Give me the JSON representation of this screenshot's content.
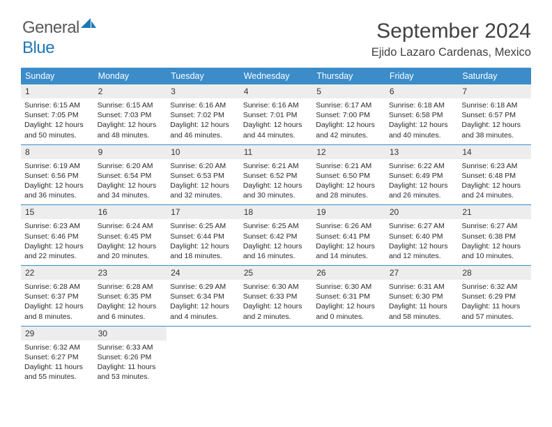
{
  "logo": {
    "word1": "General",
    "word2": "Blue"
  },
  "header": {
    "month_title": "September 2024",
    "location": "Ejido Lazaro Cardenas, Mexico"
  },
  "colors": {
    "header_bg": "#3b8cc9",
    "header_text": "#ffffff",
    "daynum_bg": "#ededed",
    "border": "#3b8cc9",
    "logo_gray": "#58595b",
    "logo_blue": "#1f77b4"
  },
  "weekdays": [
    "Sunday",
    "Monday",
    "Tuesday",
    "Wednesday",
    "Thursday",
    "Friday",
    "Saturday"
  ],
  "days": [
    {
      "n": "1",
      "sr": "6:15 AM",
      "ss": "7:05 PM",
      "dh": "12",
      "dm": "50"
    },
    {
      "n": "2",
      "sr": "6:15 AM",
      "ss": "7:03 PM",
      "dh": "12",
      "dm": "48"
    },
    {
      "n": "3",
      "sr": "6:16 AM",
      "ss": "7:02 PM",
      "dh": "12",
      "dm": "46"
    },
    {
      "n": "4",
      "sr": "6:16 AM",
      "ss": "7:01 PM",
      "dh": "12",
      "dm": "44"
    },
    {
      "n": "5",
      "sr": "6:17 AM",
      "ss": "7:00 PM",
      "dh": "12",
      "dm": "42"
    },
    {
      "n": "6",
      "sr": "6:18 AM",
      "ss": "6:58 PM",
      "dh": "12",
      "dm": "40"
    },
    {
      "n": "7",
      "sr": "6:18 AM",
      "ss": "6:57 PM",
      "dh": "12",
      "dm": "38"
    },
    {
      "n": "8",
      "sr": "6:19 AM",
      "ss": "6:56 PM",
      "dh": "12",
      "dm": "36"
    },
    {
      "n": "9",
      "sr": "6:20 AM",
      "ss": "6:54 PM",
      "dh": "12",
      "dm": "34"
    },
    {
      "n": "10",
      "sr": "6:20 AM",
      "ss": "6:53 PM",
      "dh": "12",
      "dm": "32"
    },
    {
      "n": "11",
      "sr": "6:21 AM",
      "ss": "6:52 PM",
      "dh": "12",
      "dm": "30"
    },
    {
      "n": "12",
      "sr": "6:21 AM",
      "ss": "6:50 PM",
      "dh": "12",
      "dm": "28"
    },
    {
      "n": "13",
      "sr": "6:22 AM",
      "ss": "6:49 PM",
      "dh": "12",
      "dm": "26"
    },
    {
      "n": "14",
      "sr": "6:23 AM",
      "ss": "6:48 PM",
      "dh": "12",
      "dm": "24"
    },
    {
      "n": "15",
      "sr": "6:23 AM",
      "ss": "6:46 PM",
      "dh": "12",
      "dm": "22"
    },
    {
      "n": "16",
      "sr": "6:24 AM",
      "ss": "6:45 PM",
      "dh": "12",
      "dm": "20"
    },
    {
      "n": "17",
      "sr": "6:25 AM",
      "ss": "6:44 PM",
      "dh": "12",
      "dm": "18"
    },
    {
      "n": "18",
      "sr": "6:25 AM",
      "ss": "6:42 PM",
      "dh": "12",
      "dm": "16"
    },
    {
      "n": "19",
      "sr": "6:26 AM",
      "ss": "6:41 PM",
      "dh": "12",
      "dm": "14"
    },
    {
      "n": "20",
      "sr": "6:27 AM",
      "ss": "6:40 PM",
      "dh": "12",
      "dm": "12"
    },
    {
      "n": "21",
      "sr": "6:27 AM",
      "ss": "6:38 PM",
      "dh": "12",
      "dm": "10"
    },
    {
      "n": "22",
      "sr": "6:28 AM",
      "ss": "6:37 PM",
      "dh": "12",
      "dm": "8"
    },
    {
      "n": "23",
      "sr": "6:28 AM",
      "ss": "6:35 PM",
      "dh": "12",
      "dm": "6"
    },
    {
      "n": "24",
      "sr": "6:29 AM",
      "ss": "6:34 PM",
      "dh": "12",
      "dm": "4"
    },
    {
      "n": "25",
      "sr": "6:30 AM",
      "ss": "6:33 PM",
      "dh": "12",
      "dm": "2"
    },
    {
      "n": "26",
      "sr": "6:30 AM",
      "ss": "6:31 PM",
      "dh": "12",
      "dm": "0"
    },
    {
      "n": "27",
      "sr": "6:31 AM",
      "ss": "6:30 PM",
      "dh": "11",
      "dm": "58"
    },
    {
      "n": "28",
      "sr": "6:32 AM",
      "ss": "6:29 PM",
      "dh": "11",
      "dm": "57"
    },
    {
      "n": "29",
      "sr": "6:32 AM",
      "ss": "6:27 PM",
      "dh": "11",
      "dm": "55"
    },
    {
      "n": "30",
      "sr": "6:33 AM",
      "ss": "6:26 PM",
      "dh": "11",
      "dm": "53"
    }
  ],
  "labels": {
    "sunrise": "Sunrise:",
    "sunset": "Sunset:",
    "daylight_pre": "Daylight:",
    "hours_word": "hours",
    "and_word": "and",
    "minutes_word": "minutes."
  }
}
